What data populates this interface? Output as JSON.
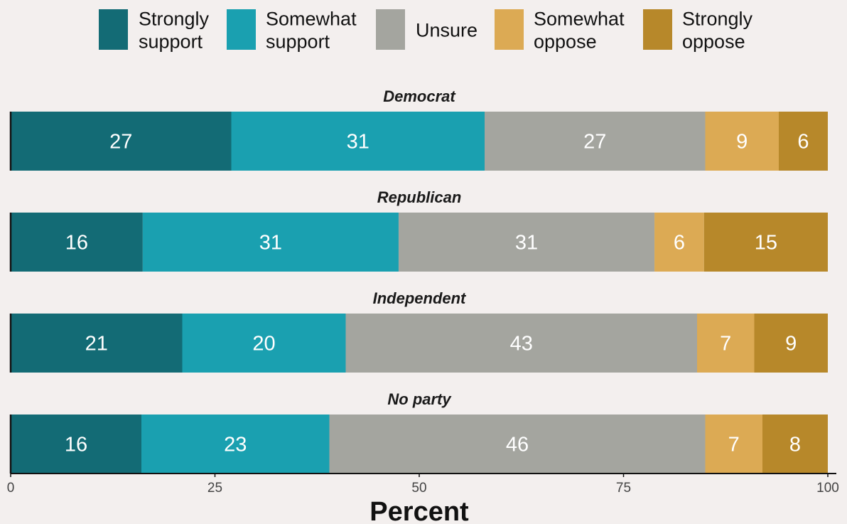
{
  "chart_data": {
    "type": "bar",
    "orientation": "horizontal",
    "stacked": true,
    "xlabel": "Percent",
    "xlim": [
      0,
      100
    ],
    "x_ticks": [
      0,
      25,
      50,
      75,
      100
    ],
    "legend_position": "top",
    "series": [
      {
        "name": "Strongly support",
        "legend_lines": [
          "Strongly",
          "support"
        ],
        "color": "#136b75"
      },
      {
        "name": "Somewhat support",
        "legend_lines": [
          "Somewhat",
          "support"
        ],
        "color": "#1aa0b0"
      },
      {
        "name": "Unsure",
        "legend_lines": [
          "Unsure"
        ],
        "color": "#a4a59f"
      },
      {
        "name": "Somewhat oppose",
        "legend_lines": [
          "Somewhat",
          "oppose"
        ],
        "color": "#dcaa54"
      },
      {
        "name": "Strongly oppose",
        "legend_lines": [
          "Strongly",
          "oppose"
        ],
        "color": "#b7882a"
      }
    ],
    "groups": [
      {
        "name": "Democrat",
        "values": [
          27,
          31,
          27,
          9,
          6
        ]
      },
      {
        "name": "Republican",
        "values": [
          16,
          31,
          31,
          6,
          15
        ]
      },
      {
        "name": "Independent",
        "values": [
          21,
          20,
          43,
          7,
          9
        ]
      },
      {
        "name": "No party",
        "values": [
          16,
          23,
          46,
          7,
          8
        ]
      }
    ]
  }
}
